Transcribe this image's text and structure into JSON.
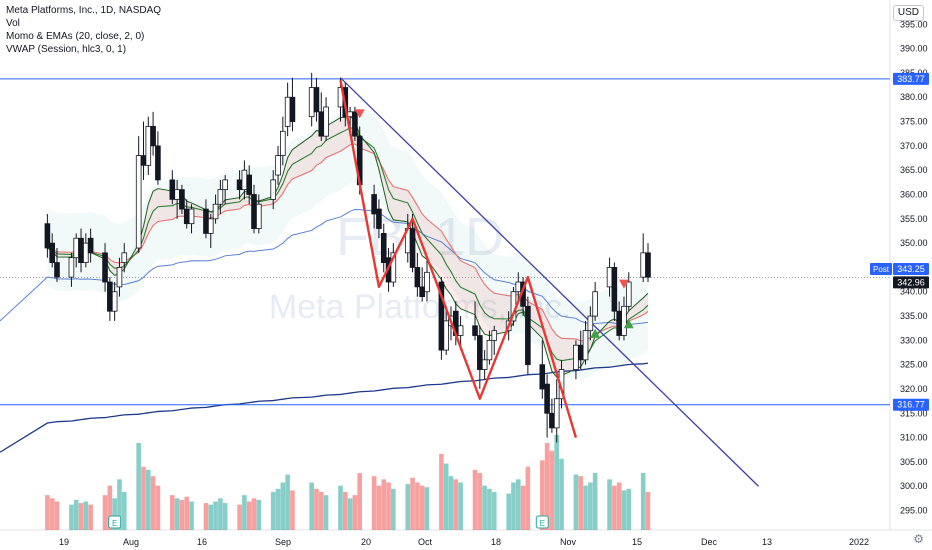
{
  "header": {
    "title": "Meta Platforms, Inc., 1D, NASDAQ",
    "indicator_1": "Vol",
    "indicator_2": "Momo & EMAs (20, close, 2, 0)",
    "indicator_3": "VWAP (Session, hlc3, 0, 1)"
  },
  "currency": "USD",
  "watermark": {
    "ticker": "FB, 1D",
    "name": "Meta Platforms, Inc."
  },
  "colors": {
    "up": "#26a69a",
    "down": "#ef5350",
    "hline": "#2962ff",
    "trendline": "#3f3fa8",
    "pattern": "#e53935",
    "ema_fast": "#2e7d32",
    "ema_slow": "#e57373",
    "vwap_long": "#1e3a8a",
    "vwap_mid": "#5b7fd6"
  },
  "chart_data": {
    "type": "candlestick",
    "y_axis": {
      "ylim": [
        291,
        400
      ],
      "ticks": [
        295,
        300,
        305,
        310,
        315,
        320,
        325,
        330,
        335,
        340,
        345,
        350,
        355,
        360,
        365,
        370,
        375,
        380,
        385,
        390,
        395
      ]
    },
    "x_axis": {
      "labels": [
        "19",
        "Aug",
        "16",
        "Sep",
        "20",
        "Oct",
        "18",
        "Nov",
        "15",
        "Dec",
        "13",
        "2022"
      ]
    },
    "price_labels": [
      {
        "value": 383.77,
        "text": "383.77"
      },
      {
        "value": 343.25,
        "text": "343.25",
        "tag": "Post"
      },
      {
        "value": 342.96,
        "text": "342.96"
      },
      {
        "value": 316.77,
        "text": "316.77"
      }
    ],
    "horizontal_lines": [
      383.77,
      316.77
    ],
    "trendline": {
      "from": {
        "date": "2021-09-13",
        "price": 384
      },
      "to": {
        "date": "2021-12-09",
        "price": 300
      }
    },
    "pattern": [
      {
        "date": "2021-09-13",
        "price": 383.5
      },
      {
        "date": "2021-09-21",
        "price": 341
      },
      {
        "date": "2021-09-28",
        "price": 355
      },
      {
        "date": "2021-10-12",
        "price": 318
      },
      {
        "date": "2021-10-22",
        "price": 343
      },
      {
        "date": "2021-11-01",
        "price": 310
      }
    ],
    "candles": [
      {
        "d": "2021-07-14",
        "o": 354,
        "h": 356,
        "l": 347,
        "c": 349,
        "v": 22
      },
      {
        "d": "2021-07-15",
        "o": 350,
        "h": 352,
        "l": 345,
        "c": 346,
        "v": 20
      },
      {
        "d": "2021-07-16",
        "o": 346,
        "h": 349,
        "l": 342,
        "c": 343,
        "v": 18
      },
      {
        "d": "2021-07-19",
        "o": 343,
        "h": 348,
        "l": 341,
        "c": 347,
        "v": 16
      },
      {
        "d": "2021-07-20",
        "o": 347,
        "h": 352,
        "l": 345,
        "c": 351,
        "v": 19
      },
      {
        "d": "2021-07-21",
        "o": 351,
        "h": 353,
        "l": 344,
        "c": 346,
        "v": 17
      },
      {
        "d": "2021-07-22",
        "o": 346,
        "h": 352,
        "l": 345,
        "c": 350,
        "v": 18
      },
      {
        "d": "2021-07-23",
        "o": 351,
        "h": 353,
        "l": 346,
        "c": 348,
        "v": 16
      },
      {
        "d": "2021-07-26",
        "o": 348,
        "h": 350,
        "l": 340,
        "c": 342,
        "v": 22
      },
      {
        "d": "2021-07-27",
        "o": 342,
        "h": 343,
        "l": 334,
        "c": 336,
        "v": 28
      },
      {
        "d": "2021-07-28",
        "o": 336,
        "h": 342,
        "l": 334,
        "c": 340,
        "v": 20
      },
      {
        "d": "2021-07-29",
        "o": 341,
        "h": 347,
        "l": 339,
        "c": 345,
        "v": 32
      },
      {
        "d": "2021-07-30",
        "o": 346,
        "h": 350,
        "l": 344,
        "c": 348,
        "v": 24
      },
      {
        "d": "2021-08-02",
        "o": 349,
        "h": 372,
        "l": 348,
        "c": 368,
        "v": 55
      },
      {
        "d": "2021-08-03",
        "o": 368,
        "h": 375,
        "l": 363,
        "c": 366,
        "v": 40
      },
      {
        "d": "2021-08-04",
        "o": 366,
        "h": 376,
        "l": 364,
        "c": 374,
        "v": 38
      },
      {
        "d": "2021-08-05",
        "o": 374,
        "h": 377,
        "l": 368,
        "c": 370,
        "v": 34
      },
      {
        "d": "2021-08-06",
        "o": 370,
        "h": 373,
        "l": 362,
        "c": 363,
        "v": 28
      },
      {
        "d": "2021-08-09",
        "o": 363,
        "h": 365,
        "l": 358,
        "c": 359,
        "v": 22
      },
      {
        "d": "2021-08-10",
        "o": 359,
        "h": 363,
        "l": 355,
        "c": 361,
        "v": 20
      },
      {
        "d": "2021-08-11",
        "o": 361,
        "h": 362,
        "l": 356,
        "c": 357,
        "v": 19
      },
      {
        "d": "2021-08-12",
        "o": 357,
        "h": 359,
        "l": 353,
        "c": 354,
        "v": 21
      },
      {
        "d": "2021-08-13",
        "o": 354,
        "h": 358,
        "l": 352,
        "c": 357,
        "v": 18
      },
      {
        "d": "2021-08-16",
        "o": 357,
        "h": 359,
        "l": 351,
        "c": 352,
        "v": 17
      },
      {
        "d": "2021-08-17",
        "o": 352,
        "h": 356,
        "l": 349,
        "c": 355,
        "v": 16
      },
      {
        "d": "2021-08-18",
        "o": 355,
        "h": 360,
        "l": 354,
        "c": 358,
        "v": 18
      },
      {
        "d": "2021-08-19",
        "o": 358,
        "h": 363,
        "l": 356,
        "c": 361,
        "v": 20
      },
      {
        "d": "2021-08-20",
        "o": 361,
        "h": 364,
        "l": 358,
        "c": 363,
        "v": 17
      },
      {
        "d": "2021-08-23",
        "o": 363,
        "h": 365,
        "l": 359,
        "c": 361,
        "v": 16
      },
      {
        "d": "2021-08-24",
        "o": 361,
        "h": 367,
        "l": 359,
        "c": 365,
        "v": 22
      },
      {
        "d": "2021-08-25",
        "o": 364,
        "h": 366,
        "l": 358,
        "c": 360,
        "v": 18
      },
      {
        "d": "2021-08-26",
        "o": 360,
        "h": 362,
        "l": 352,
        "c": 353,
        "v": 20
      },
      {
        "d": "2021-08-27",
        "o": 353,
        "h": 360,
        "l": 352,
        "c": 358,
        "v": 19
      },
      {
        "d": "2021-08-30",
        "o": 359,
        "h": 365,
        "l": 357,
        "c": 363,
        "v": 24
      },
      {
        "d": "2021-08-31",
        "o": 364,
        "h": 370,
        "l": 362,
        "c": 368,
        "v": 26
      },
      {
        "d": "2021-09-01",
        "o": 368,
        "h": 376,
        "l": 366,
        "c": 373,
        "v": 30
      },
      {
        "d": "2021-09-02",
        "o": 374,
        "h": 383,
        "l": 372,
        "c": 380,
        "v": 35
      },
      {
        "d": "2021-09-03",
        "o": 380,
        "h": 384,
        "l": 373,
        "c": 375,
        "v": 25
      },
      {
        "d": "2021-09-07",
        "o": 376,
        "h": 385,
        "l": 374,
        "c": 382,
        "v": 30
      },
      {
        "d": "2021-09-08",
        "o": 382,
        "h": 384,
        "l": 375,
        "c": 377,
        "v": 26
      },
      {
        "d": "2021-09-09",
        "o": 377,
        "h": 381,
        "l": 371,
        "c": 372,
        "v": 24
      },
      {
        "d": "2021-09-10",
        "o": 372,
        "h": 380,
        "l": 371,
        "c": 378,
        "v": 22
      },
      {
        "d": "2021-09-13",
        "o": 378,
        "h": 384,
        "l": 375,
        "c": 382,
        "v": 28
      },
      {
        "d": "2021-09-14",
        "o": 382,
        "h": 383,
        "l": 374,
        "c": 376,
        "v": 24
      },
      {
        "d": "2021-09-15",
        "o": 376,
        "h": 378,
        "l": 372,
        "c": 377,
        "v": 20
      },
      {
        "d": "2021-09-16",
        "o": 377,
        "h": 378,
        "l": 371,
        "c": 372,
        "v": 22
      },
      {
        "d": "2021-09-17",
        "o": 372,
        "h": 374,
        "l": 360,
        "c": 362,
        "v": 36
      },
      {
        "d": "2021-09-20",
        "o": 360,
        "h": 362,
        "l": 353,
        "c": 356,
        "v": 34
      },
      {
        "d": "2021-09-21",
        "o": 357,
        "h": 359,
        "l": 351,
        "c": 353,
        "v": 28
      },
      {
        "d": "2021-09-22",
        "o": 352,
        "h": 354,
        "l": 344,
        "c": 346,
        "v": 32
      },
      {
        "d": "2021-09-23",
        "o": 347,
        "h": 349,
        "l": 340,
        "c": 342,
        "v": 30
      },
      {
        "d": "2021-09-24",
        "o": 342,
        "h": 350,
        "l": 341,
        "c": 348,
        "v": 26
      },
      {
        "d": "2021-09-27",
        "o": 348,
        "h": 356,
        "l": 346,
        "c": 353,
        "v": 29
      },
      {
        "d": "2021-09-28",
        "o": 353,
        "h": 356,
        "l": 344,
        "c": 345,
        "v": 33
      },
      {
        "d": "2021-09-29",
        "o": 345,
        "h": 348,
        "l": 339,
        "c": 341,
        "v": 30
      },
      {
        "d": "2021-09-30",
        "o": 341,
        "h": 345,
        "l": 338,
        "c": 339,
        "v": 28
      },
      {
        "d": "2021-10-01",
        "o": 340,
        "h": 347,
        "l": 338,
        "c": 344,
        "v": 27
      },
      {
        "d": "2021-10-04",
        "o": 342,
        "h": 343,
        "l": 326,
        "c": 328,
        "v": 48
      },
      {
        "d": "2021-10-05",
        "o": 328,
        "h": 337,
        "l": 327,
        "c": 334,
        "v": 42
      },
      {
        "d": "2021-10-06",
        "o": 333,
        "h": 337,
        "l": 330,
        "c": 335,
        "v": 34
      },
      {
        "d": "2021-10-07",
        "o": 336,
        "h": 338,
        "l": 329,
        "c": 331,
        "v": 32
      },
      {
        "d": "2021-10-08",
        "o": 331,
        "h": 335,
        "l": 328,
        "c": 333,
        "v": 30
      },
      {
        "d": "2021-10-11",
        "o": 333,
        "h": 338,
        "l": 330,
        "c": 331,
        "v": 38
      },
      {
        "d": "2021-10-12",
        "o": 331,
        "h": 333,
        "l": 320,
        "c": 324,
        "v": 36
      },
      {
        "d": "2021-10-13",
        "o": 324,
        "h": 328,
        "l": 322,
        "c": 326,
        "v": 28
      },
      {
        "d": "2021-10-14",
        "o": 326,
        "h": 332,
        "l": 325,
        "c": 330,
        "v": 26
      },
      {
        "d": "2021-10-15",
        "o": 330,
        "h": 333,
        "l": 327,
        "c": 332,
        "v": 24
      },
      {
        "d": "2021-10-18",
        "o": 332,
        "h": 336,
        "l": 330,
        "c": 334,
        "v": 23
      },
      {
        "d": "2021-10-19",
        "o": 334,
        "h": 341,
        "l": 333,
        "c": 340,
        "v": 30
      },
      {
        "d": "2021-10-20",
        "o": 340,
        "h": 344,
        "l": 338,
        "c": 342,
        "v": 32
      },
      {
        "d": "2021-10-21",
        "o": 342,
        "h": 343,
        "l": 335,
        "c": 337,
        "v": 28
      },
      {
        "d": "2021-10-22",
        "o": 337,
        "h": 339,
        "l": 323,
        "c": 325,
        "v": 40
      },
      {
        "d": "2021-10-25",
        "o": 325,
        "h": 330,
        "l": 318,
        "c": 320,
        "v": 44
      },
      {
        "d": "2021-10-26",
        "o": 321,
        "h": 323,
        "l": 310,
        "c": 315,
        "v": 55
      },
      {
        "d": "2021-10-27",
        "o": 315,
        "h": 318,
        "l": 311,
        "c": 312,
        "v": 50
      },
      {
        "d": "2021-10-28",
        "o": 312,
        "h": 322,
        "l": 309,
        "c": 318,
        "v": 60
      },
      {
        "d": "2021-10-29",
        "o": 318,
        "h": 326,
        "l": 316,
        "c": 324,
        "v": 45
      },
      {
        "d": "2021-11-01",
        "o": 324,
        "h": 330,
        "l": 322,
        "c": 329,
        "v": 35
      },
      {
        "d": "2021-11-02",
        "o": 329,
        "h": 332,
        "l": 324,
        "c": 326,
        "v": 34
      },
      {
        "d": "2021-11-03",
        "o": 326,
        "h": 334,
        "l": 325,
        "c": 332,
        "v": 28
      },
      {
        "d": "2021-11-04",
        "o": 332,
        "h": 337,
        "l": 330,
        "c": 335,
        "v": 30
      },
      {
        "d": "2021-11-05",
        "o": 335,
        "h": 342,
        "l": 334,
        "c": 340,
        "v": 36
      },
      {
        "d": "2021-11-08",
        "o": 341,
        "h": 347,
        "l": 339,
        "c": 345,
        "v": 32
      },
      {
        "d": "2021-11-09",
        "o": 345,
        "h": 346,
        "l": 334,
        "c": 336,
        "v": 28
      },
      {
        "d": "2021-11-10",
        "o": 336,
        "h": 338,
        "l": 330,
        "c": 331,
        "v": 30
      },
      {
        "d": "2021-11-11",
        "o": 331,
        "h": 339,
        "l": 330,
        "c": 337,
        "v": 25
      },
      {
        "d": "2021-11-12",
        "o": 337,
        "h": 344,
        "l": 336,
        "c": 342,
        "v": 26
      },
      {
        "d": "2021-11-15",
        "o": 343,
        "h": 352,
        "l": 342,
        "c": 348,
        "v": 36
      },
      {
        "d": "2021-11-16",
        "o": 348,
        "h": 350,
        "l": 342,
        "c": 343,
        "v": 24
      }
    ],
    "earnings_dates": [
      "2021-07-28",
      "2021-10-25"
    ],
    "signals": [
      {
        "date": "2021-09-17",
        "type": "sell"
      },
      {
        "date": "2021-11-05",
        "type": "buy"
      },
      {
        "date": "2021-11-11",
        "type": "sell"
      },
      {
        "date": "2021-11-12",
        "type": "buy"
      }
    ]
  },
  "settings_icon": "gear-icon"
}
